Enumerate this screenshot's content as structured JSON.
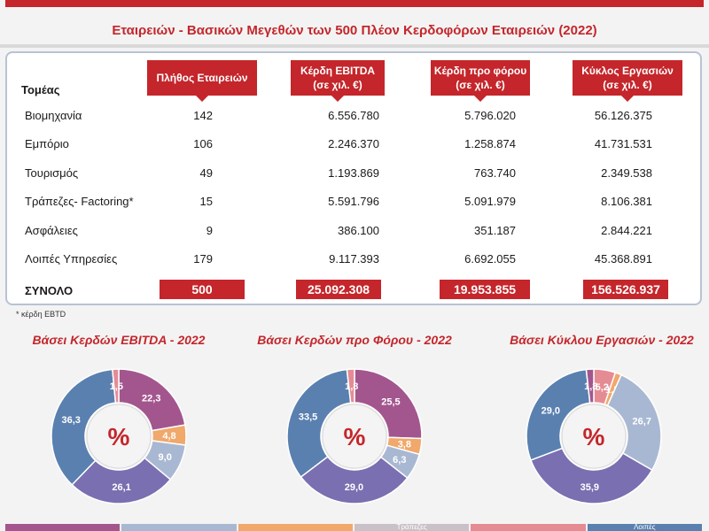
{
  "title": "Εταιρειών - Βασικών Μεγεθών των 500 Πλέον Κερδοφόρων Εταιρειών  (2022)",
  "table": {
    "sector_header": "Τομέας",
    "headers": [
      {
        "line1": "Πλήθος Εταιρειών",
        "line2": ""
      },
      {
        "line1": "Κέρδη EBITDA",
        "line2": "(σε χιλ. €)"
      },
      {
        "line1": "Κέρδη προ φόρου",
        "line2": "(σε χιλ. €)"
      },
      {
        "line1": "Κύκλος Εργασιών",
        "line2": "(σε χιλ. €)"
      }
    ],
    "rows": [
      {
        "sector": "Βιομηχανία",
        "count": "142",
        "ebitda": "6.556.780",
        "pretax": "5.796.020",
        "turnover": "56.126.375"
      },
      {
        "sector": "Εμπόριο",
        "count": "106",
        "ebitda": "2.246.370",
        "pretax": "1.258.874",
        "turnover": "41.731.531"
      },
      {
        "sector": "Τουρισμός",
        "count": "49",
        "ebitda": "1.193.869",
        "pretax": "763.740",
        "turnover": "2.349.538"
      },
      {
        "sector": "Τράπεζες- Factoring*",
        "count": "15",
        "ebitda": "5.591.796",
        "pretax": "5.091.979",
        "turnover": "8.106.381"
      },
      {
        "sector": "Ασφάλειες",
        "count": "9",
        "ebitda": "386.100",
        "pretax": "351.187",
        "turnover": "2.844.221"
      },
      {
        "sector": "Λοιπές Υπηρεσίες",
        "count": "179",
        "ebitda": "9.117.393",
        "pretax": "6.692.055",
        "turnover": "45.368.891"
      }
    ],
    "total": {
      "label": "ΣΥΝΟΛΟ",
      "count": "500",
      "ebitda": "25.092.308",
      "pretax": "19.953.855",
      "turnover": "156.526.937"
    },
    "footnote": "* κέρδη EBTD"
  },
  "colors": {
    "accent_red": "#c4262b",
    "industry": "#a3568e",
    "trade": "#a9b8d2",
    "tourism": "#f0a86b",
    "banks": "#e58b94",
    "insurance": "#c9c1c7",
    "other_services": "#5a80b0",
    "alt_slice": "#7a6fb0"
  },
  "chart_data": [
    {
      "type": "pie",
      "title": "Βάσει Κερδών EBITDA - 2022",
      "center_label": "%",
      "slices": [
        {
          "value": 22.3,
          "label": "22,3",
          "color": "#a3568e"
        },
        {
          "value": 4.8,
          "label": "4,8",
          "color": "#f0a86b"
        },
        {
          "value": 9.0,
          "label": "9,0",
          "color": "#a9b8d2"
        },
        {
          "value": 26.1,
          "label": "26,1",
          "color": "#7a6fb0"
        },
        {
          "value": 36.3,
          "label": "36,3",
          "color": "#5a80b0"
        },
        {
          "value": 1.5,
          "label": "1,5",
          "color": "#e58b94"
        }
      ]
    },
    {
      "type": "pie",
      "title": "Βάσει Κερδών προ Φόρου - 2022",
      "center_label": "%",
      "slices": [
        {
          "value": 25.5,
          "label": "25,5",
          "color": "#a3568e"
        },
        {
          "value": 3.8,
          "label": "3,8",
          "color": "#f0a86b"
        },
        {
          "value": 6.3,
          "label": "6,3",
          "color": "#a9b8d2"
        },
        {
          "value": 29.0,
          "label": "29,0",
          "color": "#7a6fb0"
        },
        {
          "value": 33.5,
          "label": "33,5",
          "color": "#5a80b0"
        },
        {
          "value": 1.8,
          "label": "1,8",
          "color": "#e58b94"
        }
      ]
    },
    {
      "type": "pie",
      "title": "Βάσει Κύκλου Εργασιών - 2022",
      "center_label": "%",
      "slices": [
        {
          "value": 5.2,
          "label": "5,2",
          "color": "#e58b94"
        },
        {
          "value": 1.5,
          "label": "1,5",
          "color": "#f0a86b"
        },
        {
          "value": 26.7,
          "label": "26,7",
          "color": "#a9b8d2"
        },
        {
          "value": 35.9,
          "label": "35,9",
          "color": "#7a6fb0"
        },
        {
          "value": 29.0,
          "label": "29,0",
          "color": "#5a80b0"
        },
        {
          "value": 1.8,
          "label": "1,8",
          "color": "#a3568e"
        }
      ]
    }
  ],
  "legend_strip": {
    "items": [
      {
        "label": "",
        "color": "#a3568e"
      },
      {
        "label": "",
        "color": "#a9b8d2"
      },
      {
        "label": "",
        "color": "#f0a86b"
      },
      {
        "label": "Τράπεζες",
        "color": "#c9c1c7"
      },
      {
        "label": "",
        "color": "#e58b94"
      },
      {
        "label": "Λοιπές",
        "color": "#5a80b0"
      }
    ]
  }
}
